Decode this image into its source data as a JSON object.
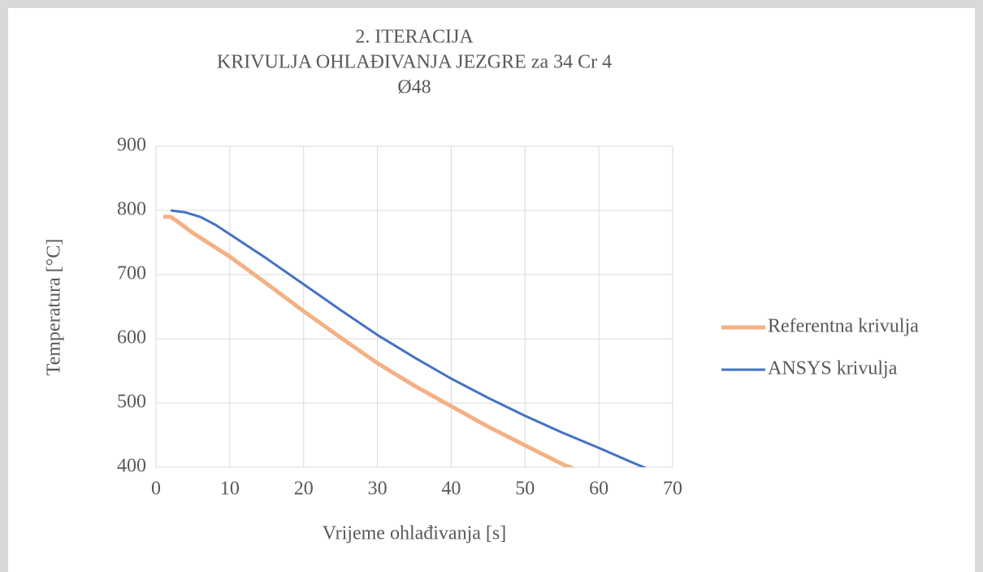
{
  "chart_data": {
    "type": "line",
    "title": [
      "2. ITERACIJA",
      "KRIVULJA OHLAĐIVANJA JEZGRE za 34 Cr 4",
      "Ø48"
    ],
    "x_label": "Vrijeme ohlađivanja [s]",
    "y_label": "Temperatura [°C]",
    "xlim": [
      0,
      70
    ],
    "xticks": [
      0,
      10,
      20,
      30,
      40,
      50,
      60,
      70
    ],
    "ylim": [
      400,
      900
    ],
    "yticks": [
      400,
      500,
      600,
      700,
      800,
      900
    ],
    "grid": true,
    "legend": "right",
    "series": [
      {
        "name": "Referentna krivulja",
        "color": "#f4b183",
        "x": [
          1,
          2,
          3,
          5,
          10,
          15,
          20,
          25,
          30,
          35,
          40,
          45,
          50,
          55,
          56.5
        ],
        "values": [
          790,
          790,
          782,
          765,
          728,
          686,
          643,
          602,
          562,
          527,
          495,
          463,
          434,
          405,
          398
        ]
      },
      {
        "name": "ANSYS krivulja",
        "color": "#4472c4",
        "x": [
          2,
          4,
          6,
          8,
          10,
          15,
          20,
          25,
          30,
          35,
          40,
          45,
          50,
          55,
          60,
          65,
          66.5
        ],
        "values": [
          800,
          797,
          790,
          778,
          763,
          725,
          685,
          645,
          606,
          571,
          538,
          508,
          480,
          454,
          430,
          405,
          398
        ]
      }
    ]
  }
}
